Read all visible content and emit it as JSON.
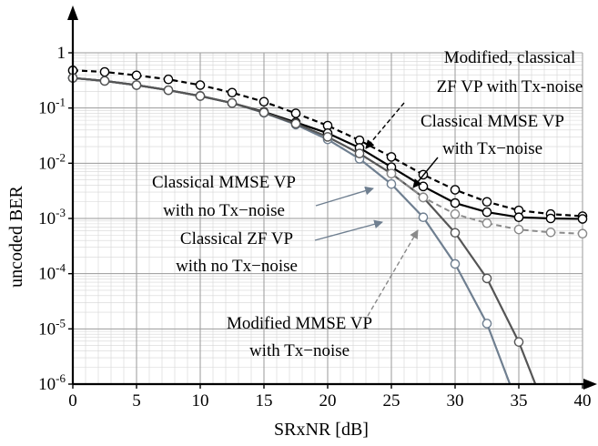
{
  "chart_data": {
    "type": "line",
    "xlabel": "SRxNR [dB]",
    "ylabel": "uncoded BER",
    "xlim": [
      0,
      40
    ],
    "ylim": [
      1e-06,
      1
    ],
    "yscale": "log",
    "grid": true,
    "xticks": [
      "0",
      "5",
      "10",
      "15",
      "20",
      "25",
      "30",
      "35",
      "40"
    ],
    "yticks": [
      {
        "base": "1",
        "exp": ""
      },
      {
        "base": "10",
        "exp": "-1"
      },
      {
        "base": "10",
        "exp": "-2"
      },
      {
        "base": "10",
        "exp": "-3"
      },
      {
        "base": "10",
        "exp": "-4"
      },
      {
        "base": "10",
        "exp": "-5"
      },
      {
        "base": "10",
        "exp": "-6"
      }
    ],
    "colors": {
      "black": "#000000",
      "dark_gray": "#555555",
      "light_gray": "#8a8a8a",
      "blue_gray": "#6f7f90"
    },
    "series": [
      {
        "key": "zf_tx",
        "color": "#000000",
        "dash": "6,4",
        "width": 2.2,
        "x": [
          0,
          2.5,
          5,
          7.5,
          10,
          12.5,
          15,
          17.5,
          20,
          22.5,
          25,
          27.5,
          30,
          32.5,
          35,
          37.5,
          40
        ],
        "y": [
          0.48,
          0.45,
          0.39,
          0.33,
          0.26,
          0.19,
          0.13,
          0.08,
          0.048,
          0.026,
          0.013,
          0.0062,
          0.0033,
          0.002,
          0.0014,
          0.0012,
          0.0011
        ],
        "markers": true
      },
      {
        "key": "mmse_tx",
        "color": "#000000",
        "dash": "",
        "width": 2.2,
        "x": [
          0,
          2.5,
          5,
          7.5,
          10,
          12.5,
          15,
          17.5,
          20,
          22.5,
          25,
          27.5,
          30,
          32.5,
          35,
          37.5,
          40
        ],
        "y": [
          0.35,
          0.31,
          0.26,
          0.21,
          0.165,
          0.123,
          0.085,
          0.055,
          0.035,
          0.019,
          0.0085,
          0.0038,
          0.0019,
          0.0013,
          0.00105,
          0.001,
          0.00098
        ],
        "markers": true
      },
      {
        "key": "mmse_notx",
        "color": "#6f7f90",
        "dash": "",
        "width": 2.2,
        "x": [
          0,
          2.5,
          5,
          7.5,
          10,
          12.5,
          15,
          17.5,
          20,
          22.5,
          25,
          27.5,
          30,
          32.5,
          34.3
        ],
        "y": [
          0.35,
          0.31,
          0.26,
          0.21,
          0.165,
          0.123,
          0.082,
          0.05,
          0.027,
          0.012,
          0.0042,
          0.00105,
          0.00015,
          1.25e-05,
          1e-06
        ],
        "markers": [
          true,
          true,
          true,
          true,
          true,
          true,
          true,
          true,
          true,
          true,
          true,
          true,
          true,
          true,
          false
        ]
      },
      {
        "key": "zf_notx",
        "color": "#555555",
        "dash": "",
        "width": 2.2,
        "x": [
          0,
          2.5,
          5,
          7.5,
          10,
          12.5,
          15,
          17.5,
          20,
          22.5,
          25,
          27.5,
          30,
          32.5,
          35,
          36.3
        ],
        "y": [
          0.35,
          0.31,
          0.26,
          0.21,
          0.165,
          0.123,
          0.083,
          0.052,
          0.03,
          0.015,
          0.0065,
          0.0024,
          0.00055,
          8.2e-05,
          5.8e-06,
          1e-06
        ],
        "markers": [
          true,
          true,
          true,
          true,
          true,
          true,
          true,
          true,
          true,
          true,
          true,
          true,
          true,
          true,
          true,
          false
        ]
      },
      {
        "key": "mod_mmse_tx",
        "color": "#8a8a8a",
        "dash": "6,4",
        "width": 2.0,
        "x": [
          25,
          27.5,
          30,
          32.5,
          35,
          37.5,
          40
        ],
        "y": [
          0.0065,
          0.0024,
          0.0012,
          0.00082,
          0.00063,
          0.00056,
          0.00053
        ],
        "markers": true
      }
    ],
    "annotations": [
      {
        "lines": [
          "Modified, classical",
          "ZF VP with Tx-noise"
        ]
      },
      {
        "lines": [
          "Classical MMSE VP",
          "with Tx−noise"
        ]
      },
      {
        "lines": [
          "Classical MMSE VP",
          "with no Tx−noise"
        ]
      },
      {
        "lines": [
          "Classical ZF VP",
          "with no Tx−noise"
        ]
      },
      {
        "lines": [
          "Modified MMSE VP",
          "with Tx−noise"
        ]
      }
    ]
  }
}
